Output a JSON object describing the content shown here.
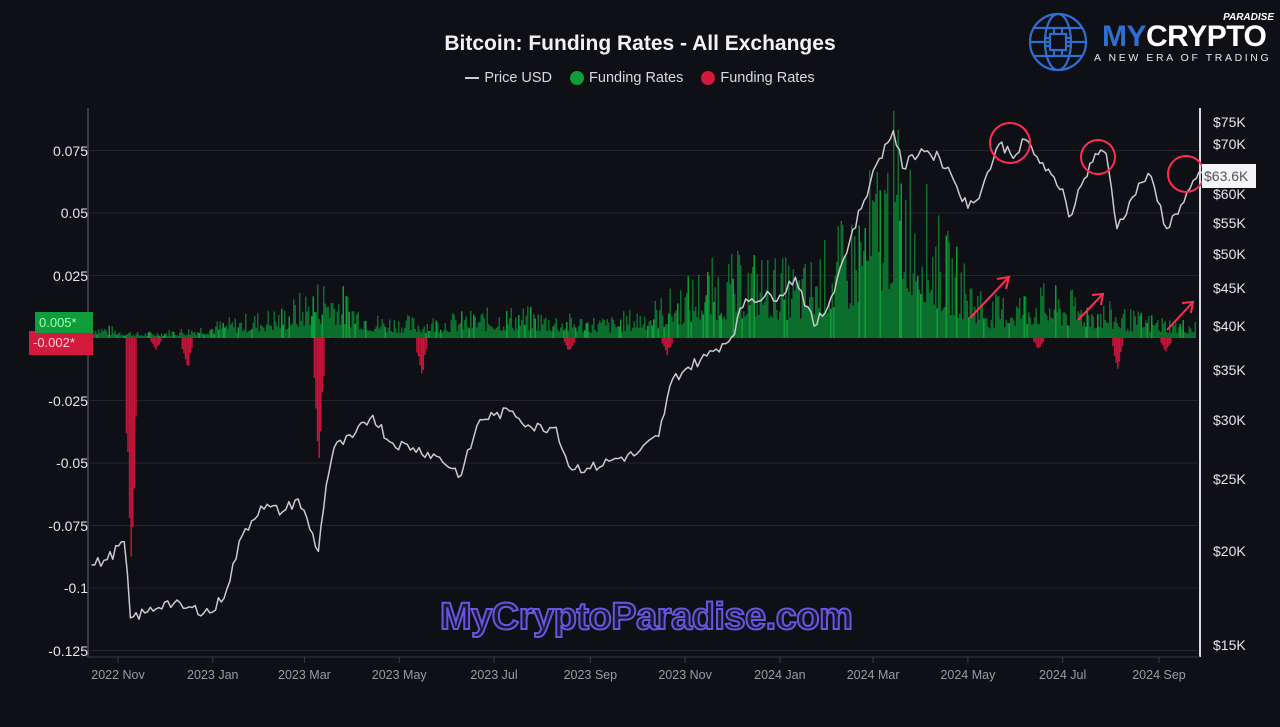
{
  "header": {
    "title": "Bitcoin: Funding Rates - All Exchanges",
    "legend": [
      {
        "label": "Price USD",
        "type": "line",
        "color": "#c9c9cf"
      },
      {
        "label": "Funding Rates",
        "type": "dot",
        "color": "#0f9d3a"
      },
      {
        "label": "Funding Rates",
        "type": "dot",
        "color": "#d41a3c"
      }
    ]
  },
  "logo": {
    "brand_my": "MY",
    "brand_crypto": "CRYPTO",
    "paradise": "PARADISE",
    "tagline": "A NEW ERA OF TRADING"
  },
  "watermark": "MyCryptoParadise.com",
  "badges": {
    "positive": "0.005*",
    "negative": "-0.002*",
    "price": "$63.6K"
  },
  "colors": {
    "background": "#0f0f16",
    "grid": "#24232e",
    "positive": "#0f9d3a",
    "positive_fill": "#0c6e2c",
    "negative": "#c8143a",
    "price_line": "#c9c9cf",
    "annotation": "#ff2d55"
  },
  "chart_data": {
    "type": "bar+line",
    "title": "Bitcoin: Funding Rates - All Exchanges",
    "xlabel": "",
    "ylabel_left": "Funding Rate",
    "ylabel_right": "Price USD (log)",
    "x_ticks": [
      "2022 Nov",
      "2023 Jan",
      "2023 Mar",
      "2023 May",
      "2023 Jul",
      "2023 Sep",
      "2023 Nov",
      "2024 Jan",
      "2024 Mar",
      "2024 May",
      "2024 Jul",
      "2024 Sep"
    ],
    "y_left_ticks": [
      "0.075",
      "0.05",
      "0.025",
      "-0.025",
      "-0.05",
      "-0.075",
      "-0.1",
      "-0.125"
    ],
    "y_left_range": [
      -0.125,
      0.09
    ],
    "y_right_ticks": [
      "$75K",
      "$70K",
      "$60K",
      "$55K",
      "$50K",
      "$45K",
      "$40K",
      "$35K",
      "$30K",
      "$25K",
      "$20K",
      "$15K"
    ],
    "y_right_range_k": [
      15,
      78
    ],
    "grid": true,
    "legend_position": "top",
    "current_values": {
      "funding_positive": 0.005,
      "funding_negative": -0.002,
      "price": "$63.6K"
    },
    "series": [
      {
        "name": "Price USD",
        "unit": "K USD",
        "x": [
          "2022-10-15",
          "2022-10-25",
          "2022-11-05",
          "2022-11-09",
          "2022-11-20",
          "2022-12-01",
          "2022-12-15",
          "2023-01-01",
          "2023-01-10",
          "2023-01-20",
          "2023-02-01",
          "2023-02-15",
          "2023-02-25",
          "2023-03-10",
          "2023-03-15",
          "2023-03-20",
          "2023-04-01",
          "2023-04-14",
          "2023-04-25",
          "2023-05-10",
          "2023-05-25",
          "2023-06-10",
          "2023-06-22",
          "2023-07-01",
          "2023-07-13",
          "2023-07-25",
          "2023-08-10",
          "2023-08-18",
          "2023-09-01",
          "2023-09-15",
          "2023-10-01",
          "2023-10-15",
          "2023-10-24",
          "2023-11-01",
          "2023-11-15",
          "2023-12-01",
          "2023-12-10",
          "2024-01-01",
          "2024-01-11",
          "2024-01-23",
          "2024-02-01",
          "2024-02-15",
          "2024-02-28",
          "2024-03-05",
          "2024-03-14",
          "2024-03-20",
          "2024-04-01",
          "2024-04-13",
          "2024-04-20",
          "2024-05-01",
          "2024-05-10",
          "2024-05-21",
          "2024-06-01",
          "2024-06-07",
          "2024-06-20",
          "2024-07-01",
          "2024-07-05",
          "2024-07-15",
          "2024-07-22",
          "2024-07-29",
          "2024-08-05",
          "2024-08-15",
          "2024-08-25",
          "2024-09-06",
          "2024-09-15",
          "2024-09-25",
          "2024-09-30"
        ],
        "values": [
          19.2,
          19.5,
          20.6,
          16.3,
          16.6,
          17.1,
          16.8,
          16.6,
          17.8,
          21.0,
          23.0,
          22.6,
          23.5,
          20.0,
          24.5,
          27.5,
          28.4,
          30.4,
          28.0,
          27.5,
          26.8,
          25.3,
          30.0,
          30.4,
          30.8,
          29.3,
          29.3,
          26.0,
          25.8,
          26.5,
          27.0,
          28.5,
          34.0,
          35.0,
          36.5,
          38.7,
          43.5,
          44.0,
          46.5,
          40.0,
          42.5,
          52.0,
          62.0,
          67.0,
          73.0,
          65.0,
          69.0,
          67.0,
          64.0,
          57.5,
          61.0,
          70.0,
          67.8,
          71.0,
          64.5,
          61.0,
          56.0,
          63.0,
          68.0,
          68.0,
          54.0,
          59.5,
          64.0,
          54.0,
          58.0,
          63.0,
          63.6
        ]
      },
      {
        "name": "Funding Rates (positive)",
        "color": "#0f9d3a",
        "x": [
          "2022-10",
          "2022-11",
          "2022-12",
          "2023-01",
          "2023-02",
          "2023-03",
          "2023-04",
          "2023-05",
          "2023-06",
          "2023-07",
          "2023-08",
          "2023-09",
          "2023-10",
          "2023-11",
          "2023-12",
          "2024-01",
          "2024-02",
          "2024-03",
          "2024-04",
          "2024-05",
          "2024-06",
          "2024-07",
          "2024-08",
          "2024-09"
        ],
        "values": [
          0.006,
          0.002,
          0.004,
          0.008,
          0.012,
          0.024,
          0.009,
          0.008,
          0.01,
          0.012,
          0.009,
          0.008,
          0.015,
          0.028,
          0.032,
          0.027,
          0.045,
          0.082,
          0.04,
          0.015,
          0.02,
          0.016,
          0.01,
          0.007
        ]
      },
      {
        "name": "Funding Rates (negative)",
        "color": "#c8143a",
        "x": [
          "2022-11-09",
          "2022-11-25",
          "2022-12-15",
          "2023-03-10",
          "2023-05-15",
          "2023-08-18",
          "2023-10-20",
          "2024-06-15",
          "2024-08-05",
          "2024-09-05"
        ],
        "values": [
          -0.115,
          -0.005,
          -0.015,
          -0.055,
          -0.017,
          -0.006,
          -0.007,
          -0.005,
          -0.013,
          -0.007
        ]
      }
    ],
    "annotations": [
      {
        "type": "circle",
        "label": "price peak 2024-06"
      },
      {
        "type": "circle",
        "label": "price peak 2024-07"
      },
      {
        "type": "circle",
        "label": "price 2024-09 current"
      },
      {
        "type": "arrow",
        "label": "funding rising 2024-06"
      },
      {
        "type": "arrow",
        "label": "funding rising 2024-07/08"
      },
      {
        "type": "arrow",
        "label": "funding rising 2024-09"
      }
    ]
  }
}
